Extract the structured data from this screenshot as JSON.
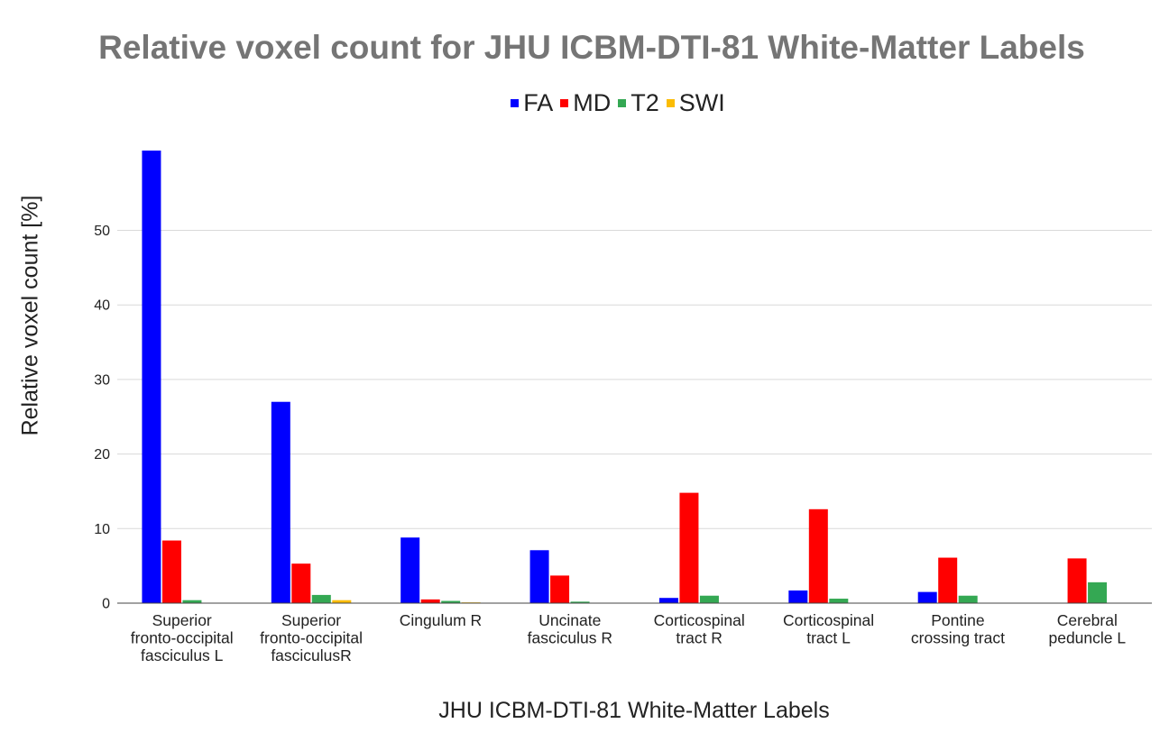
{
  "chart_data": {
    "type": "bar",
    "title": "Relative voxel count for JHU ICBM-DTI-81 White-Matter Labels",
    "xlabel": "JHU ICBM-DTI-81 White-Matter Labels",
    "ylabel": "Relative voxel count [%]",
    "ylim": [
      0,
      60
    ],
    "yticks": [
      0,
      10,
      20,
      30,
      40,
      50
    ],
    "grid": true,
    "legend_position": "top",
    "categories": [
      [
        "Superior",
        "fronto-occipital",
        "fasciculus L"
      ],
      [
        "Superior",
        "fronto-occipital",
        "fasciculusR"
      ],
      [
        "Cingulum R"
      ],
      [
        "Uncinate",
        "fasciculus R"
      ],
      [
        "Corticospinal",
        "tract R"
      ],
      [
        "Corticospinal",
        "tract L"
      ],
      [
        "Pontine",
        "crossing tract"
      ],
      [
        "Cerebral",
        "peduncle L"
      ]
    ],
    "series": [
      {
        "name": "FA",
        "color": "#0000ff",
        "values": [
          60.7,
          27.0,
          8.8,
          7.1,
          0.7,
          1.7,
          1.5,
          0.0
        ]
      },
      {
        "name": "MD",
        "color": "#ff0000",
        "values": [
          8.4,
          5.3,
          0.5,
          3.7,
          14.8,
          12.6,
          6.1,
          6.0
        ]
      },
      {
        "name": "T2",
        "color": "#34a853",
        "values": [
          0.4,
          1.1,
          0.3,
          0.2,
          1.0,
          0.6,
          1.0,
          2.8
        ]
      },
      {
        "name": "SWI",
        "color": "#fbbc04",
        "values": [
          0.0,
          0.4,
          0.1,
          0.0,
          0.0,
          0.0,
          0.0,
          0.0
        ]
      }
    ]
  }
}
